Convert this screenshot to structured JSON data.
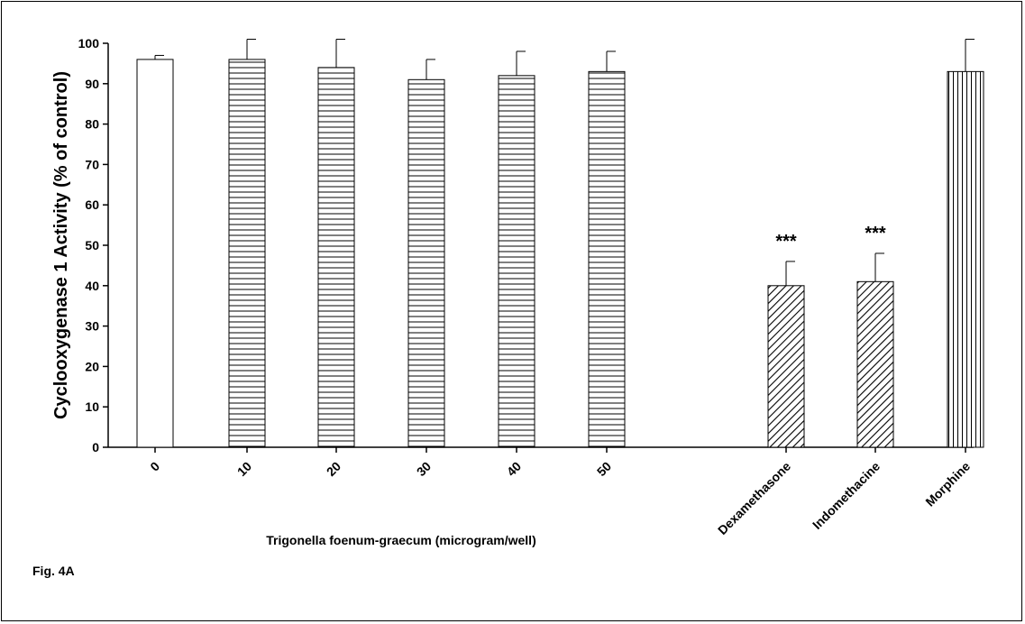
{
  "chart_data": {
    "type": "bar",
    "ylabel": "Cyclooxygenase 1 Activity (% of control)",
    "xlabel": "Trigonella foenum-graecum (microgram/well)",
    "figure_label": "Fig. 4A",
    "ylim": [
      0,
      100
    ],
    "yticks": [
      0,
      10,
      20,
      30,
      40,
      50,
      60,
      70,
      80,
      90,
      100
    ],
    "grid": false,
    "categories": [
      "0",
      "10",
      "20",
      "30",
      "40",
      "50",
      "Dexamethasone",
      "Indomethacine",
      "Morphine"
    ],
    "values": [
      96,
      96,
      94,
      91,
      92,
      93,
      40,
      41,
      93
    ],
    "error_upper": [
      97,
      101,
      101,
      96,
      98,
      98,
      46,
      48,
      101
    ],
    "patterns": [
      "none",
      "horizontal",
      "horizontal",
      "horizontal",
      "horizontal",
      "horizontal",
      "diagonal",
      "diagonal",
      "vertical"
    ],
    "annotations": [
      "",
      "",
      "",
      "",
      "",
      "",
      "***",
      "***",
      ""
    ]
  }
}
